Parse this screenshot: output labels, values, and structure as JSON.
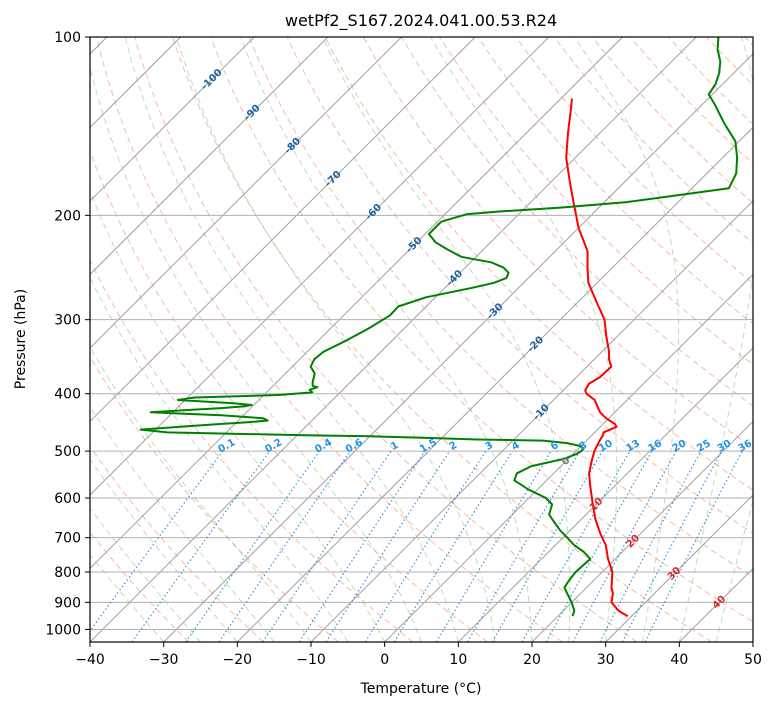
{
  "chart_data": {
    "type": "line",
    "subtype": "skew-t log-p diagram",
    "title": "wetPf2_S167.2024.041.00.53.R24",
    "xlabel": "Temperature (°C)",
    "ylabel": "Pressure (hPa)",
    "xlim": [
      -40,
      50
    ],
    "ylim": [
      1050,
      100
    ],
    "y_scale": "log",
    "x_ticks": [
      -40,
      -30,
      -20,
      -10,
      0,
      10,
      20,
      30,
      40,
      50
    ],
    "y_ticks": [
      100,
      200,
      300,
      400,
      500,
      600,
      700,
      800,
      900,
      1000
    ],
    "grid": true,
    "colors": {
      "temperature": "#ff0000",
      "dewpoint": "#008000",
      "grid": "#b0b0b0",
      "isotherm": "#a0a0a0",
      "dry_adiabat": "#f08060",
      "moist_adiabat": "#70b070",
      "mixing_ratio": "#1f7fd6",
      "mixing_ratio_label": "#2090e8",
      "isotherm_label": "#1f5f9f",
      "warm_label": "#d03030"
    },
    "isotherm_labels": [
      "-100",
      "-90",
      "-80",
      "-70",
      "-60",
      "-50",
      "-40",
      "-30",
      "-20",
      "-10",
      "0",
      "10",
      "20",
      "30",
      "40"
    ],
    "isotherm_label_values": [
      -100,
      -90,
      -80,
      -70,
      -60,
      -50,
      -40,
      -30,
      -20,
      -10,
      0,
      10,
      20,
      30,
      40
    ],
    "mixing_ratio_labels": [
      "0.1",
      "0.2",
      "0.4",
      "0.6",
      "1",
      "1.5",
      "2",
      "3",
      "4",
      "6",
      "8",
      "10",
      "13",
      "16",
      "20",
      "25",
      "30",
      "36"
    ],
    "mixing_ratio_values": [
      0.1,
      0.2,
      0.4,
      0.6,
      1,
      1.5,
      2,
      3,
      4,
      6,
      8,
      10,
      13,
      16,
      20,
      25,
      30,
      36
    ],
    "series": [
      {
        "key": "temperature",
        "pressure": [
          950,
          930,
          900,
          870,
          850,
          800,
          760,
          720,
          690,
          650,
          610,
          570,
          545,
          520,
          500,
          480,
          470,
          465,
          455,
          450,
          440,
          430,
          420,
          410,
          400,
          395,
          385,
          375,
          360,
          350,
          340,
          320,
          300,
          280,
          260,
          245,
          230,
          210,
          190,
          175,
          160,
          145,
          135,
          127
        ],
        "temperature": [
          29.5,
          27.5,
          25.4,
          24.4,
          23.4,
          21.4,
          19.0,
          16.8,
          14.6,
          11.8,
          9.2,
          6.5,
          4.8,
          3.5,
          2.5,
          1.8,
          1.5,
          1.2,
          2.2,
          1.6,
          -0.4,
          -2.0,
          -3.2,
          -4.4,
          -6.4,
          -7.0,
          -7.4,
          -6.8,
          -6.7,
          -8.0,
          -9.0,
          -11.5,
          -14.0,
          -17.5,
          -21.2,
          -23.4,
          -25.6,
          -30.0,
          -34.2,
          -37.6,
          -41.2,
          -44.4,
          -46.6,
          -48.5
        ]
      },
      {
        "key": "dewpoint",
        "pressure": [
          950,
          930,
          900,
          870,
          850,
          830,
          800,
          780,
          760,
          740,
          720,
          700,
          680,
          660,
          640,
          630,
          615,
          600,
          580,
          560,
          545,
          530,
          515,
          505,
          500,
          495,
          490,
          485,
          480,
          478,
          475,
          472,
          470,
          465,
          460,
          455,
          450,
          447,
          444,
          440,
          435,
          432,
          430,
          426,
          423,
          420,
          418,
          415,
          410,
          406,
          402,
          398,
          394,
          390,
          388,
          384,
          380,
          370,
          360,
          350,
          340,
          325,
          310,
          295,
          285,
          275,
          265,
          260,
          255,
          250,
          245,
          240,
          235,
          228,
          222,
          215,
          205,
          199,
          197,
          194,
          190,
          185,
          180,
          170,
          160,
          150,
          140,
          130,
          125,
          120,
          115,
          110,
          105,
          100
        ],
        "dewpoint": [
          22.0,
          21.5,
          20.0,
          18.2,
          17.0,
          16.7,
          16.4,
          16.5,
          16.6,
          14.8,
          12.5,
          10.6,
          8.6,
          6.8,
          5.0,
          4.6,
          4.0,
          2.3,
          -1.3,
          -4.4,
          -5.0,
          -4.0,
          -0.5,
          0.5,
          0.7,
          0.7,
          -0.2,
          -2.1,
          -5.9,
          -15.0,
          -22.0,
          -30.0,
          -39.0,
          -58.0,
          -62.0,
          -57.0,
          -52.0,
          -48.5,
          -46.0,
          -47.0,
          -53.0,
          -59.0,
          -63.0,
          -58.0,
          -54.0,
          -51.0,
          -50.3,
          -53.0,
          -61.0,
          -59.0,
          -48.0,
          -43.8,
          -44.5,
          -43.8,
          -44.6,
          -45.0,
          -45.3,
          -46.0,
          -47.5,
          -48.0,
          -47.8,
          -46.2,
          -44.8,
          -43.7,
          -43.8,
          -41.3,
          -36.3,
          -34.0,
          -33.0,
          -33.4,
          -34.8,
          -37.2,
          -42.0,
          -45.0,
          -47.5,
          -49.5,
          -49.5,
          -47.0,
          -43.0,
          -35.0,
          -27.0,
          -21.0,
          -15.0,
          -16.0,
          -18.0,
          -20.5,
          -24.4,
          -28.3,
          -30.5,
          -31.0,
          -32.0,
          -33.4,
          -35.4,
          -37.0
        ]
      }
    ]
  }
}
